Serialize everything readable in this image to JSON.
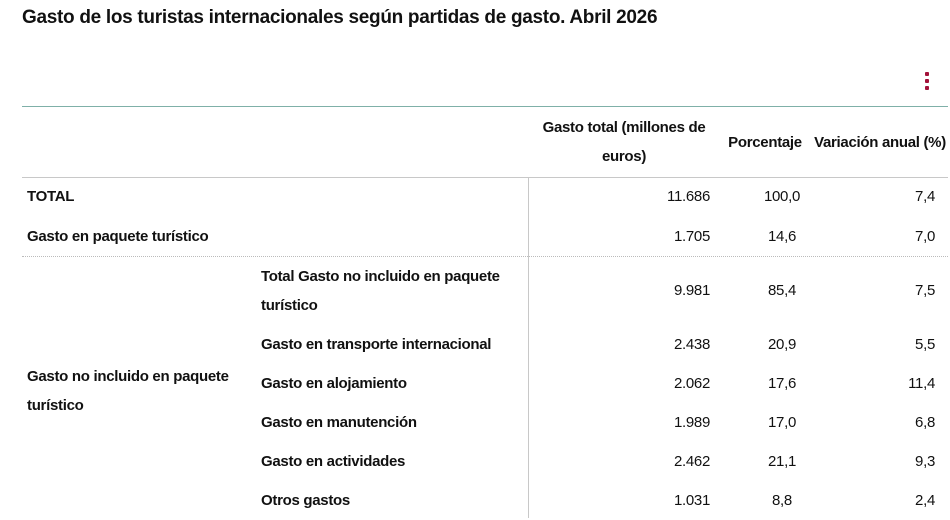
{
  "title": "Gasto de los turistas internacionales según partidas de gasto. Abril 2026",
  "table": {
    "header": [
      "Gasto total (millones de euros)",
      "Porcentaje",
      "Variación anual (%)"
    ],
    "group": "Gasto no incluido en paquete turístico",
    "rows": [
      {
        "label": "TOTAL",
        "values": [
          "11.686",
          "100,0",
          "7,4"
        ]
      },
      {
        "label": "Gasto en paquete turístico",
        "values": [
          "1.705",
          "14,6",
          "7,0"
        ]
      },
      {
        "label": "Total Gasto no incluido en paquete turístico",
        "values": [
          "9.981",
          "85,4",
          "7,5"
        ]
      },
      {
        "label": "Gasto en transporte internacional",
        "values": [
          "2.438",
          "20,9",
          "5,5"
        ]
      },
      {
        "label": "Gasto en alojamiento",
        "values": [
          "2.062",
          "17,6",
          "11,4"
        ]
      },
      {
        "label": "Gasto en manutención",
        "values": [
          "1.989",
          "17,0",
          "6,8"
        ]
      },
      {
        "label": "Gasto en actividades",
        "values": [
          "2.462",
          "21,1",
          "9,3"
        ]
      },
      {
        "label": "Otros gastos",
        "values": [
          "1.031",
          "8,8",
          "2,4"
        ]
      }
    ]
  }
}
